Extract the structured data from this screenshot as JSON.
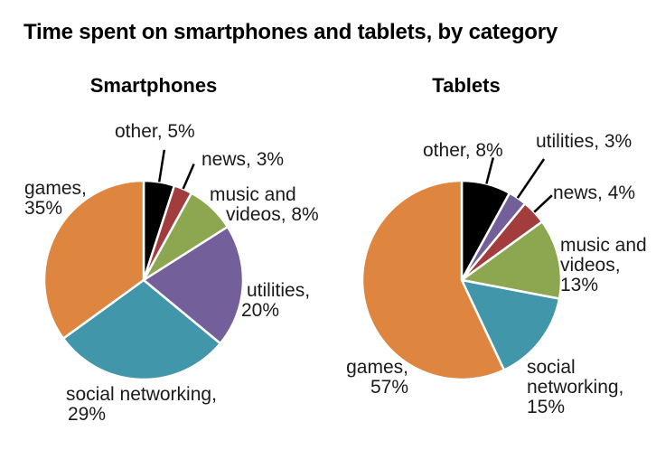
{
  "title": "Time spent on smartphones and tablets, by category",
  "background": "#ffffff",
  "text_color": "#1a1a1a",
  "chart_data": [
    {
      "type": "pie",
      "title": "Smartphones",
      "unit": "%",
      "start_angle": "top",
      "direction": "clockwise",
      "slices": [
        {
          "category": "other",
          "value": 5,
          "color": "#000000",
          "label_lines": [
            "other, 5%"
          ]
        },
        {
          "category": "news",
          "value": 3,
          "color": "#A33C3C",
          "label_lines": [
            "news, 3%"
          ]
        },
        {
          "category": "music and videos",
          "value": 8,
          "color": "#8CA750",
          "label_lines": [
            "music and",
            "videos, 8%"
          ]
        },
        {
          "category": "utilities",
          "value": 20,
          "color": "#73609B",
          "label_lines": [
            "utilities,",
            "20%"
          ]
        },
        {
          "category": "social networking",
          "value": 29,
          "color": "#4296AA",
          "label_lines": [
            "social networking,",
            "29%"
          ]
        },
        {
          "category": "games",
          "value": 35,
          "color": "#DE8540",
          "label_lines": [
            "games,",
            "35%"
          ]
        }
      ]
    },
    {
      "type": "pie",
      "title": "Tablets",
      "unit": "%",
      "start_angle": "top",
      "direction": "clockwise",
      "slices": [
        {
          "category": "other",
          "value": 8,
          "color": "#000000",
          "label_lines": [
            "other, 8%"
          ]
        },
        {
          "category": "utilities",
          "value": 3,
          "color": "#73609B",
          "label_lines": [
            "utilities, 3%"
          ]
        },
        {
          "category": "news",
          "value": 4,
          "color": "#A33C3C",
          "label_lines": [
            "news, 4%"
          ]
        },
        {
          "category": "music and videos",
          "value": 13,
          "color": "#8CA750",
          "label_lines": [
            "music and",
            "videos,",
            "13%"
          ]
        },
        {
          "category": "social networking",
          "value": 15,
          "color": "#4296AA",
          "label_lines": [
            "social",
            "networking,",
            "15%"
          ]
        },
        {
          "category": "games",
          "value": 57,
          "color": "#DE8540",
          "label_lines": [
            "games,",
            "57%"
          ]
        }
      ]
    }
  ]
}
